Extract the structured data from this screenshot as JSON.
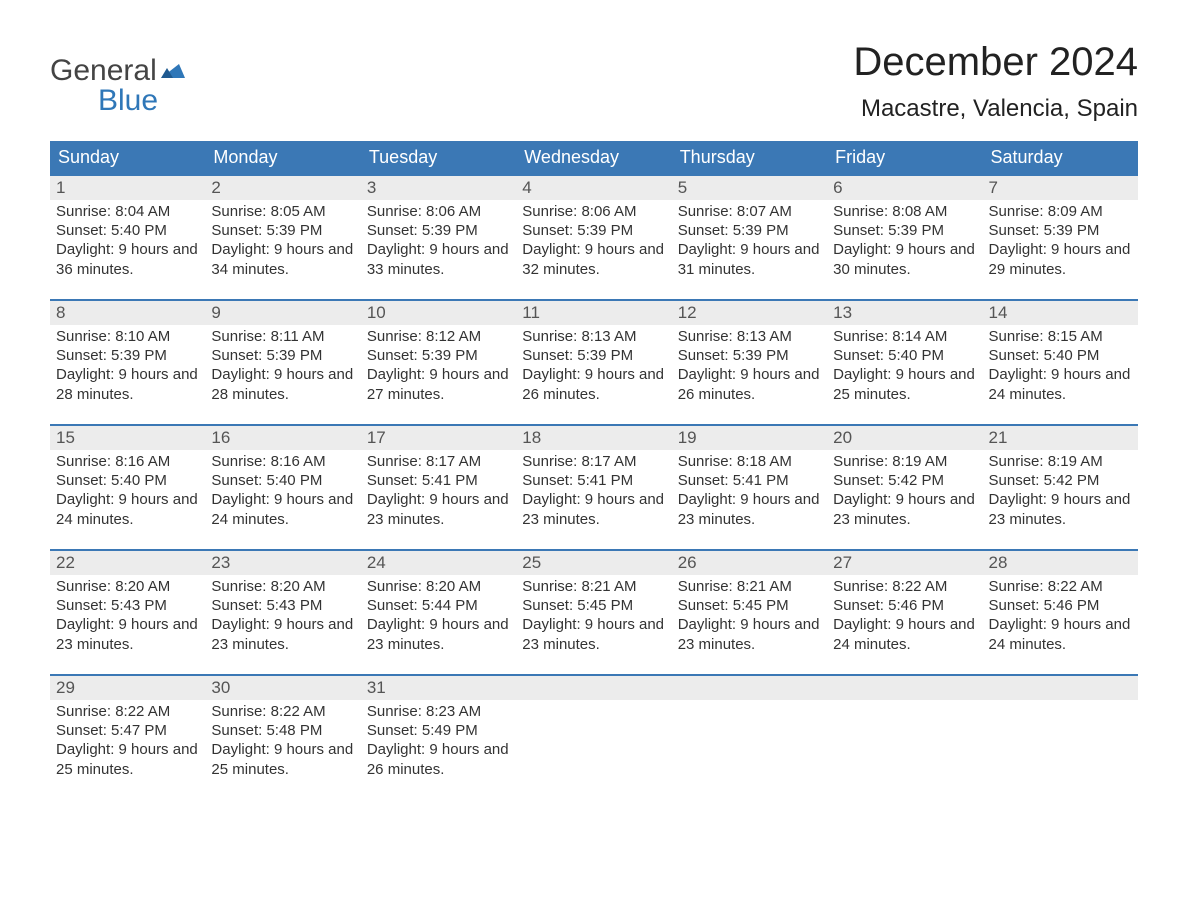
{
  "brand": {
    "word1": "General",
    "word2": "Blue",
    "accent_color": "#2f77b8"
  },
  "title": "December 2024",
  "location": "Macastre, Valencia, Spain",
  "header_bg": "#3b78b5",
  "header_text_color": "#ffffff",
  "daynum_bg": "#ececec",
  "row_top_border": "#3b78b5",
  "text_color": "#333333",
  "weekdays": [
    "Sunday",
    "Monday",
    "Tuesday",
    "Wednesday",
    "Thursday",
    "Friday",
    "Saturday"
  ],
  "weeks": [
    [
      {
        "n": "1",
        "sunrise": "8:04 AM",
        "sunset": "5:40 PM",
        "daylight": "9 hours and 36 minutes."
      },
      {
        "n": "2",
        "sunrise": "8:05 AM",
        "sunset": "5:39 PM",
        "daylight": "9 hours and 34 minutes."
      },
      {
        "n": "3",
        "sunrise": "8:06 AM",
        "sunset": "5:39 PM",
        "daylight": "9 hours and 33 minutes."
      },
      {
        "n": "4",
        "sunrise": "8:06 AM",
        "sunset": "5:39 PM",
        "daylight": "9 hours and 32 minutes."
      },
      {
        "n": "5",
        "sunrise": "8:07 AM",
        "sunset": "5:39 PM",
        "daylight": "9 hours and 31 minutes."
      },
      {
        "n": "6",
        "sunrise": "8:08 AM",
        "sunset": "5:39 PM",
        "daylight": "9 hours and 30 minutes."
      },
      {
        "n": "7",
        "sunrise": "8:09 AM",
        "sunset": "5:39 PM",
        "daylight": "9 hours and 29 minutes."
      }
    ],
    [
      {
        "n": "8",
        "sunrise": "8:10 AM",
        "sunset": "5:39 PM",
        "daylight": "9 hours and 28 minutes."
      },
      {
        "n": "9",
        "sunrise": "8:11 AM",
        "sunset": "5:39 PM",
        "daylight": "9 hours and 28 minutes."
      },
      {
        "n": "10",
        "sunrise": "8:12 AM",
        "sunset": "5:39 PM",
        "daylight": "9 hours and 27 minutes."
      },
      {
        "n": "11",
        "sunrise": "8:13 AM",
        "sunset": "5:39 PM",
        "daylight": "9 hours and 26 minutes."
      },
      {
        "n": "12",
        "sunrise": "8:13 AM",
        "sunset": "5:39 PM",
        "daylight": "9 hours and 26 minutes."
      },
      {
        "n": "13",
        "sunrise": "8:14 AM",
        "sunset": "5:40 PM",
        "daylight": "9 hours and 25 minutes."
      },
      {
        "n": "14",
        "sunrise": "8:15 AM",
        "sunset": "5:40 PM",
        "daylight": "9 hours and 24 minutes."
      }
    ],
    [
      {
        "n": "15",
        "sunrise": "8:16 AM",
        "sunset": "5:40 PM",
        "daylight": "9 hours and 24 minutes."
      },
      {
        "n": "16",
        "sunrise": "8:16 AM",
        "sunset": "5:40 PM",
        "daylight": "9 hours and 24 minutes."
      },
      {
        "n": "17",
        "sunrise": "8:17 AM",
        "sunset": "5:41 PM",
        "daylight": "9 hours and 23 minutes."
      },
      {
        "n": "18",
        "sunrise": "8:17 AM",
        "sunset": "5:41 PM",
        "daylight": "9 hours and 23 minutes."
      },
      {
        "n": "19",
        "sunrise": "8:18 AM",
        "sunset": "5:41 PM",
        "daylight": "9 hours and 23 minutes."
      },
      {
        "n": "20",
        "sunrise": "8:19 AM",
        "sunset": "5:42 PM",
        "daylight": "9 hours and 23 minutes."
      },
      {
        "n": "21",
        "sunrise": "8:19 AM",
        "sunset": "5:42 PM",
        "daylight": "9 hours and 23 minutes."
      }
    ],
    [
      {
        "n": "22",
        "sunrise": "8:20 AM",
        "sunset": "5:43 PM",
        "daylight": "9 hours and 23 minutes."
      },
      {
        "n": "23",
        "sunrise": "8:20 AM",
        "sunset": "5:43 PM",
        "daylight": "9 hours and 23 minutes."
      },
      {
        "n": "24",
        "sunrise": "8:20 AM",
        "sunset": "5:44 PM",
        "daylight": "9 hours and 23 minutes."
      },
      {
        "n": "25",
        "sunrise": "8:21 AM",
        "sunset": "5:45 PM",
        "daylight": "9 hours and 23 minutes."
      },
      {
        "n": "26",
        "sunrise": "8:21 AM",
        "sunset": "5:45 PM",
        "daylight": "9 hours and 23 minutes."
      },
      {
        "n": "27",
        "sunrise": "8:22 AM",
        "sunset": "5:46 PM",
        "daylight": "9 hours and 24 minutes."
      },
      {
        "n": "28",
        "sunrise": "8:22 AM",
        "sunset": "5:46 PM",
        "daylight": "9 hours and 24 minutes."
      }
    ],
    [
      {
        "n": "29",
        "sunrise": "8:22 AM",
        "sunset": "5:47 PM",
        "daylight": "9 hours and 25 minutes."
      },
      {
        "n": "30",
        "sunrise": "8:22 AM",
        "sunset": "5:48 PM",
        "daylight": "9 hours and 25 minutes."
      },
      {
        "n": "31",
        "sunrise": "8:23 AM",
        "sunset": "5:49 PM",
        "daylight": "9 hours and 26 minutes."
      },
      null,
      null,
      null,
      null
    ]
  ],
  "labels": {
    "sunrise": "Sunrise:",
    "sunset": "Sunset:",
    "daylight": "Daylight:"
  }
}
